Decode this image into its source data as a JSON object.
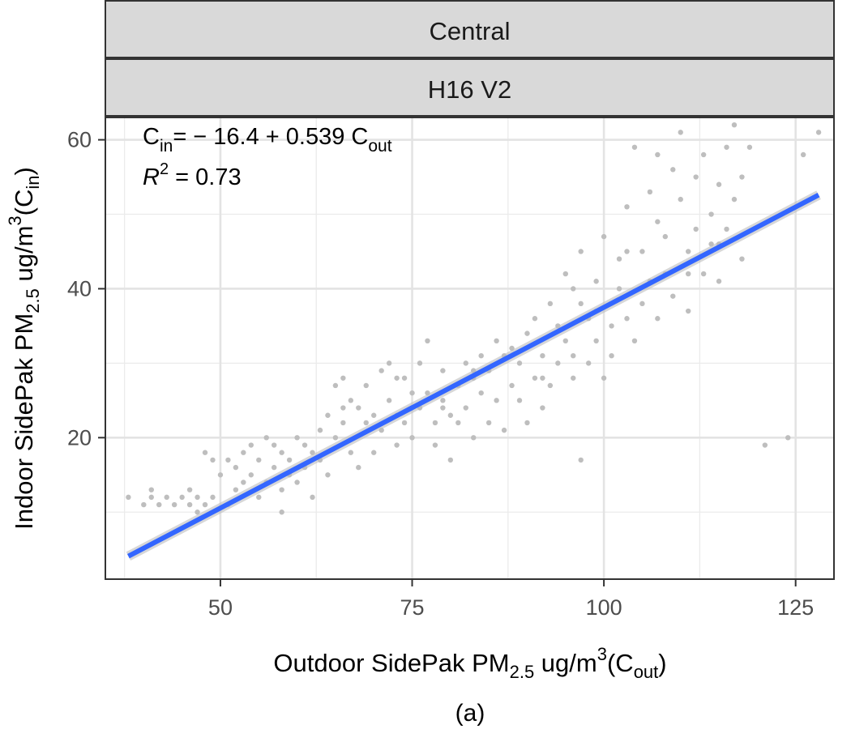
{
  "strips": [
    "Central",
    "H16 V2"
  ],
  "annotations": {
    "equation": {
      "lhs_main": "C",
      "lhs_sub": "in",
      "middle": "= − 16.4 + 0.539 C",
      "rhs_sub": "out"
    },
    "r2": {
      "symbol": "R",
      "sup": "2",
      "value": " = 0.73"
    }
  },
  "x_axis": {
    "pre": "Outdoor SidePak PM",
    "sub": "2.5",
    "unit": " ug/m",
    "sup": "3",
    "open": "(C",
    "var_sub": "out",
    "close": ")"
  },
  "y_axis": {
    "pre": "Indoor SidePak PM",
    "sub": "2.5",
    "unit": " ug/m",
    "sup": "3",
    "open": "(C",
    "var_sub": "in",
    "close": ")"
  },
  "caption": "(a)",
  "chart_data": {
    "type": "scatter",
    "xlim": [
      35,
      130
    ],
    "ylim": [
      1,
      63
    ],
    "x_ticks": [
      50,
      75,
      100,
      125
    ],
    "y_ticks": [
      20,
      40,
      60
    ],
    "grid": true,
    "point_color": "#bebebe",
    "fit_color": "#3366ff",
    "fit": {
      "intercept": -16.4,
      "slope": 0.539,
      "r2": 0.73,
      "x_range": [
        38,
        128
      ]
    },
    "series": [
      {
        "points": [
          [
            38,
            12
          ],
          [
            40,
            11
          ],
          [
            41,
            12
          ],
          [
            41,
            13
          ],
          [
            42,
            11
          ],
          [
            43,
            12
          ],
          [
            44,
            11
          ],
          [
            45,
            12
          ],
          [
            46,
            13
          ],
          [
            46,
            11
          ],
          [
            47,
            12
          ],
          [
            48,
            11
          ],
          [
            48,
            18
          ],
          [
            49,
            17
          ],
          [
            49,
            12
          ],
          [
            50,
            15
          ],
          [
            51,
            17
          ],
          [
            52,
            13
          ],
          [
            52,
            16
          ],
          [
            53,
            18
          ],
          [
            53,
            14
          ],
          [
            54,
            19
          ],
          [
            54,
            15
          ],
          [
            55,
            12
          ],
          [
            55,
            17
          ],
          [
            56,
            20
          ],
          [
            56,
            14
          ],
          [
            57,
            16
          ],
          [
            57,
            19
          ],
          [
            58,
            13
          ],
          [
            58,
            18
          ],
          [
            59,
            17
          ],
          [
            59,
            15
          ],
          [
            60,
            20
          ],
          [
            60,
            14
          ],
          [
            61,
            16
          ],
          [
            61,
            19
          ],
          [
            62,
            12
          ],
          [
            62,
            18
          ],
          [
            63,
            21
          ],
          [
            63,
            17
          ],
          [
            64,
            15
          ],
          [
            64,
            23
          ],
          [
            65,
            20
          ],
          [
            65,
            27
          ],
          [
            66,
            22
          ],
          [
            66,
            28
          ],
          [
            67,
            18
          ],
          [
            67,
            25
          ],
          [
            68,
            24
          ],
          [
            68,
            16
          ],
          [
            69,
            22
          ],
          [
            69,
            27
          ],
          [
            70,
            23
          ],
          [
            70,
            18
          ],
          [
            71,
            29
          ],
          [
            71,
            21
          ],
          [
            72,
            25
          ],
          [
            72,
            30
          ],
          [
            73,
            23
          ],
          [
            73,
            19
          ],
          [
            74,
            28
          ],
          [
            74,
            22
          ],
          [
            75,
            26
          ],
          [
            75,
            20
          ],
          [
            76,
            24
          ],
          [
            76,
            30
          ],
          [
            77,
            33
          ],
          [
            77,
            26
          ],
          [
            78,
            22
          ],
          [
            78,
            19
          ],
          [
            79,
            25
          ],
          [
            79,
            29
          ],
          [
            80,
            17
          ],
          [
            80,
            23
          ],
          [
            81,
            27
          ],
          [
            81,
            22
          ],
          [
            82,
            30
          ],
          [
            82,
            24
          ],
          [
            83,
            28
          ],
          [
            83,
            20
          ],
          [
            84,
            26
          ],
          [
            84,
            31
          ],
          [
            85,
            29
          ],
          [
            85,
            22
          ],
          [
            86,
            33
          ],
          [
            86,
            25
          ],
          [
            87,
            31
          ],
          [
            87,
            21
          ],
          [
            88,
            27
          ],
          [
            88,
            32
          ],
          [
            89,
            30
          ],
          [
            89,
            25
          ],
          [
            90,
            34
          ],
          [
            90,
            22
          ],
          [
            91,
            28
          ],
          [
            91,
            36
          ],
          [
            92,
            31
          ],
          [
            92,
            24
          ],
          [
            93,
            38
          ],
          [
            93,
            27
          ],
          [
            94,
            30
          ],
          [
            94,
            35
          ],
          [
            95,
            33
          ],
          [
            95,
            42
          ],
          [
            96,
            31
          ],
          [
            96,
            28
          ],
          [
            97,
            17
          ],
          [
            97,
            38
          ],
          [
            97,
            45
          ],
          [
            98,
            36
          ],
          [
            98,
            30
          ],
          [
            99,
            33
          ],
          [
            99,
            41
          ],
          [
            100,
            28
          ],
          [
            100,
            47
          ],
          [
            101,
            35
          ],
          [
            101,
            31
          ],
          [
            102,
            40
          ],
          [
            102,
            44
          ],
          [
            103,
            36
          ],
          [
            103,
            51
          ],
          [
            104,
            33
          ],
          [
            104,
            59
          ],
          [
            105,
            38
          ],
          [
            105,
            45
          ],
          [
            106,
            53
          ],
          [
            106,
            41
          ],
          [
            107,
            36
          ],
          [
            107,
            58
          ],
          [
            108,
            47
          ],
          [
            108,
            42
          ],
          [
            109,
            56
          ],
          [
            109,
            39
          ],
          [
            110,
            52
          ],
          [
            110,
            61
          ],
          [
            111,
            45
          ],
          [
            111,
            37
          ],
          [
            112,
            55
          ],
          [
            112,
            48
          ],
          [
            113,
            42
          ],
          [
            113,
            58
          ],
          [
            114,
            50
          ],
          [
            114,
            46
          ],
          [
            115,
            54
          ],
          [
            115,
            41
          ],
          [
            116,
            59
          ],
          [
            116,
            48
          ],
          [
            117,
            52
          ],
          [
            117,
            62
          ],
          [
            118,
            44
          ],
          [
            118,
            55
          ],
          [
            119,
            59
          ],
          [
            121,
            19
          ],
          [
            124,
            20
          ],
          [
            126,
            58
          ],
          [
            128,
            61
          ],
          [
            47,
            10
          ],
          [
            51,
            11
          ],
          [
            58,
            10
          ],
          [
            66,
            24
          ],
          [
            73,
            28
          ],
          [
            79,
            24
          ],
          [
            83,
            29
          ],
          [
            92,
            28
          ],
          [
            96,
            40
          ],
          [
            99,
            37
          ],
          [
            103,
            45
          ],
          [
            107,
            49
          ],
          [
            111,
            42
          ],
          [
            115,
            46
          ]
        ]
      }
    ]
  }
}
